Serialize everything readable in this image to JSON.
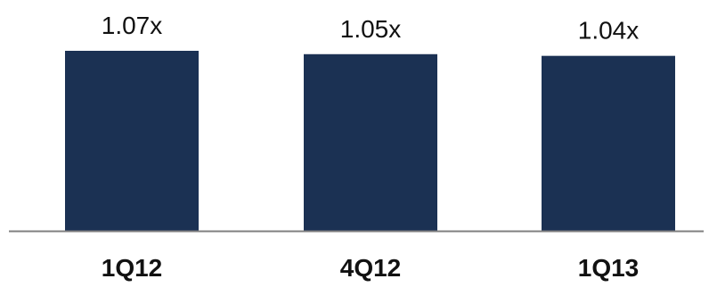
{
  "chart_data": {
    "type": "bar",
    "categories": [
      "1Q12",
      "4Q12",
      "1Q13"
    ],
    "values": [
      1.07,
      1.05,
      1.04
    ],
    "value_labels": [
      "1.07x",
      "1.05x",
      "1.04x"
    ],
    "title": "",
    "xlabel": "",
    "ylabel": "",
    "grid": false,
    "legend": "none",
    "colors": {
      "bar": "#1b3153",
      "axis": "#808080",
      "label_text": "#111111"
    }
  }
}
